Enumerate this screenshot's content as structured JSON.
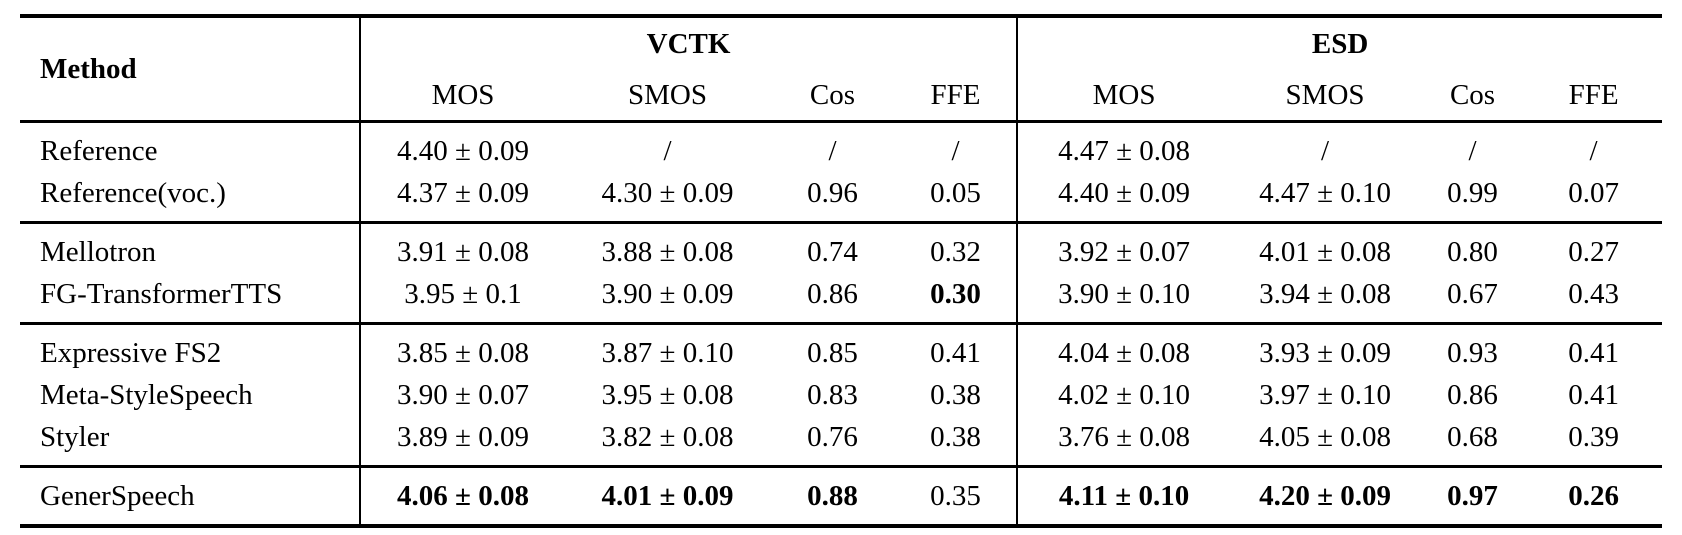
{
  "table": {
    "method_header": "Method",
    "groups": [
      {
        "label": "VCTK",
        "columns": [
          "MOS",
          "SMOS",
          "Cos",
          "FFE"
        ]
      },
      {
        "label": "ESD",
        "columns": [
          "MOS",
          "SMOS",
          "Cos",
          "FFE"
        ]
      }
    ],
    "sections": [
      {
        "rows": [
          {
            "method": "Reference",
            "cells": [
              {
                "text": "4.40 ± 0.09",
                "bold": false
              },
              {
                "text": "/",
                "bold": false
              },
              {
                "text": "/",
                "bold": false
              },
              {
                "text": "/",
                "bold": false
              },
              {
                "text": "4.47 ± 0.08",
                "bold": false
              },
              {
                "text": "/",
                "bold": false
              },
              {
                "text": "/",
                "bold": false
              },
              {
                "text": "/",
                "bold": false
              }
            ]
          },
          {
            "method": "Reference(voc.)",
            "cells": [
              {
                "text": "4.37 ± 0.09",
                "bold": false
              },
              {
                "text": "4.30 ± 0.09",
                "bold": false
              },
              {
                "text": "0.96",
                "bold": false
              },
              {
                "text": "0.05",
                "bold": false
              },
              {
                "text": "4.40 ± 0.09",
                "bold": false
              },
              {
                "text": "4.47 ± 0.10",
                "bold": false
              },
              {
                "text": "0.99",
                "bold": false
              },
              {
                "text": "0.07",
                "bold": false
              }
            ]
          }
        ]
      },
      {
        "rows": [
          {
            "method": "Mellotron",
            "cells": [
              {
                "text": "3.91 ± 0.08",
                "bold": false
              },
              {
                "text": "3.88 ± 0.08",
                "bold": false
              },
              {
                "text": "0.74",
                "bold": false
              },
              {
                "text": "0.32",
                "bold": false
              },
              {
                "text": "3.92 ± 0.07",
                "bold": false
              },
              {
                "text": "4.01 ± 0.08",
                "bold": false
              },
              {
                "text": "0.80",
                "bold": false
              },
              {
                "text": "0.27",
                "bold": false
              }
            ]
          },
          {
            "method": "FG-TransformerTTS",
            "cells": [
              {
                "text": "3.95 ± 0.1",
                "bold": false
              },
              {
                "text": "3.90 ± 0.09",
                "bold": false
              },
              {
                "text": "0.86",
                "bold": false
              },
              {
                "text": "0.30",
                "bold": true
              },
              {
                "text": "3.90 ± 0.10",
                "bold": false
              },
              {
                "text": "3.94 ± 0.08",
                "bold": false
              },
              {
                "text": "0.67",
                "bold": false
              },
              {
                "text": "0.43",
                "bold": false
              }
            ]
          }
        ]
      },
      {
        "rows": [
          {
            "method": "Expressive FS2",
            "cells": [
              {
                "text": "3.85 ± 0.08",
                "bold": false
              },
              {
                "text": "3.87 ± 0.10",
                "bold": false
              },
              {
                "text": "0.85",
                "bold": false
              },
              {
                "text": "0.41",
                "bold": false
              },
              {
                "text": "4.04 ± 0.08",
                "bold": false
              },
              {
                "text": "3.93 ± 0.09",
                "bold": false
              },
              {
                "text": "0.93",
                "bold": false
              },
              {
                "text": "0.41",
                "bold": false
              }
            ]
          },
          {
            "method": "Meta-StyleSpeech",
            "cells": [
              {
                "text": "3.90 ± 0.07",
                "bold": false
              },
              {
                "text": "3.95 ± 0.08",
                "bold": false
              },
              {
                "text": "0.83",
                "bold": false
              },
              {
                "text": "0.38",
                "bold": false
              },
              {
                "text": "4.02 ± 0.10",
                "bold": false
              },
              {
                "text": "3.97 ± 0.10",
                "bold": false
              },
              {
                "text": "0.86",
                "bold": false
              },
              {
                "text": "0.41",
                "bold": false
              }
            ]
          },
          {
            "method": "Styler",
            "cells": [
              {
                "text": "3.89 ± 0.09",
                "bold": false
              },
              {
                "text": "3.82 ± 0.08",
                "bold": false
              },
              {
                "text": "0.76",
                "bold": false
              },
              {
                "text": "0.38",
                "bold": false
              },
              {
                "text": "3.76 ± 0.08",
                "bold": false
              },
              {
                "text": "4.05 ± 0.08",
                "bold": false
              },
              {
                "text": "0.68",
                "bold": false
              },
              {
                "text": "0.39",
                "bold": false
              }
            ]
          }
        ]
      },
      {
        "rows": [
          {
            "method": "GenerSpeech",
            "cells": [
              {
                "text": "4.06 ± 0.08",
                "bold": true
              },
              {
                "text": "4.01 ± 0.09",
                "bold": true
              },
              {
                "text": "0.88",
                "bold": true
              },
              {
                "text": "0.35",
                "bold": false
              },
              {
                "text": "4.11 ± 0.10",
                "bold": true
              },
              {
                "text": "4.20 ± 0.09",
                "bold": true
              },
              {
                "text": "0.97",
                "bold": true
              },
              {
                "text": "0.26",
                "bold": true
              }
            ]
          }
        ]
      }
    ]
  }
}
